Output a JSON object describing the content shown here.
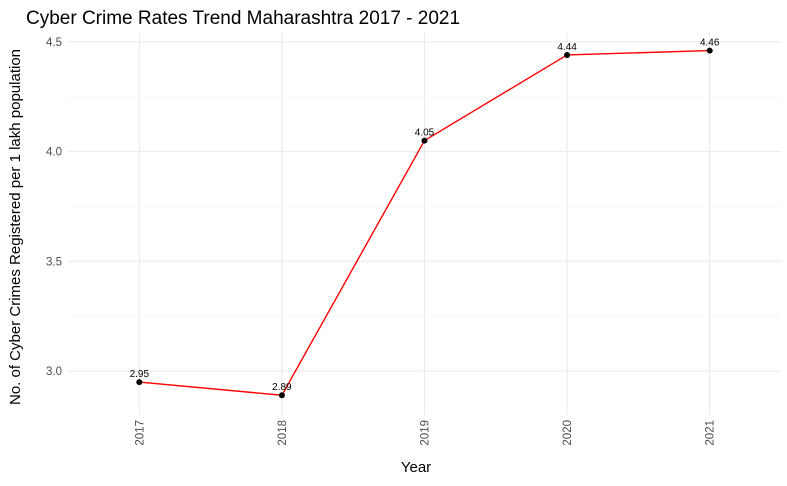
{
  "chart_data": {
    "type": "line",
    "title": "Cyber Crime Rates Trend Maharashtra 2017 - 2021",
    "xlabel": "Year",
    "ylabel": "No. of Cyber Crimes Registered per 1 lakh population",
    "categories": [
      "2017",
      "2018",
      "2019",
      "2020",
      "2021"
    ],
    "series": [
      {
        "values": [
          2.95,
          2.89,
          4.05,
          4.44,
          4.46
        ],
        "data_labels": [
          "2.95",
          "2.89",
          "4.05",
          "4.44",
          "4.46"
        ],
        "color": "#ff0000",
        "marker_color": "#000000"
      }
    ],
    "ylim": [
      2.8,
      4.54
    ],
    "yticks": [
      3.0,
      3.5,
      4.0,
      4.5
    ],
    "ytick_labels": [
      "3.0",
      "3.5",
      "4.0",
      "4.5"
    ],
    "grid": true,
    "x_tick_rotation": "vertical"
  }
}
